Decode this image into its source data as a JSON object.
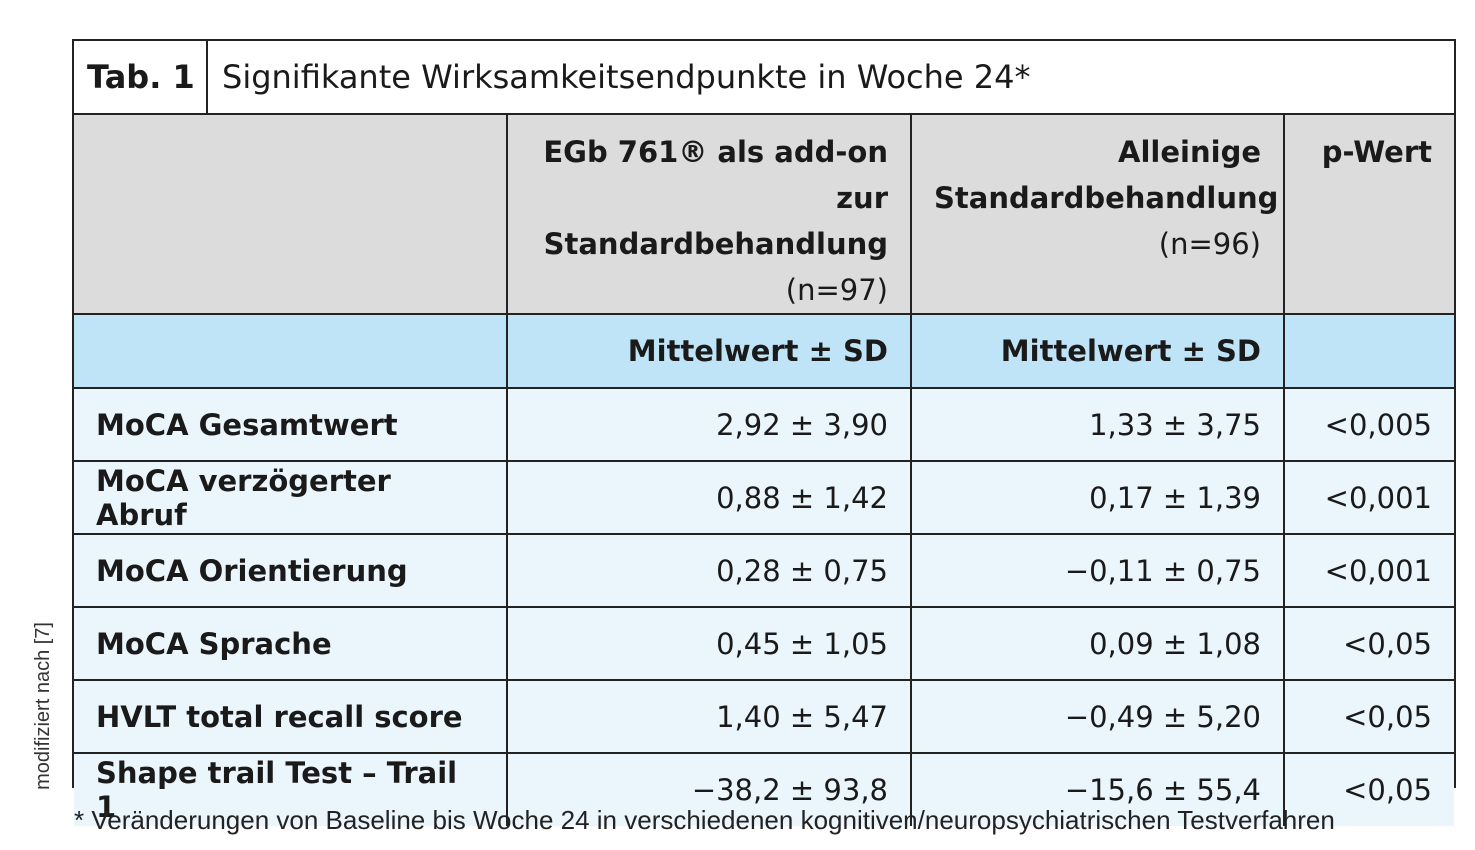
{
  "side_note": "modifiziert nach [7]",
  "title": {
    "tab_label": "Tab. 1",
    "text": "Signifikante Wirksamkeitsendpunkte in Woche 24*"
  },
  "header": {
    "col1": "",
    "col2_line1": "EGb 761® als add-on zur",
    "col2_line2": "Standardbehandlung",
    "col2_n": "(n=97)",
    "col3_line1": "Alleinige",
    "col3_line2": "Standardbehandlung",
    "col3_n": "(n=96)",
    "col4": "p-Wert"
  },
  "subheader": {
    "col1": "",
    "col2": "Mittelwert ± SD",
    "col3": "Mittelwert ± SD",
    "col4": ""
  },
  "rows": [
    {
      "label": "MoCA Gesamtwert",
      "egb": "2,92 ± 3,90",
      "standard": "1,33 ± 3,75",
      "p": "<0,005"
    },
    {
      "label": "MoCA verzögerter Abruf",
      "egb": "0,88 ± 1,42",
      "standard": "0,17 ± 1,39",
      "p": "<0,001"
    },
    {
      "label": "MoCA Orientierung",
      "egb": "0,28 ± 0,75",
      "standard": "−0,11 ± 0,75",
      "p": "<0,001"
    },
    {
      "label": "MoCA Sprache",
      "egb": "0,45 ± 1,05",
      "standard": "0,09 ± 1,08",
      "p": "<0,05"
    },
    {
      "label": "HVLT total recall score",
      "egb": "1,40 ± 5,47",
      "standard": "−0,49 ± 5,20",
      "p": "<0,05"
    },
    {
      "label": "Shape trail Test – Trail 1",
      "egb": "−38,2 ± 93,8",
      "standard": "−15,6 ± 55,4",
      "p": "<0,05"
    }
  ],
  "footnote": "* Veränderungen von Baseline bis Woche 24 in verschiedenen kognitiven/neuropsychiatrischen Testverfahren",
  "colors": {
    "header_bg": "#dcdcdc",
    "subheader_bg": "#bfe3f7",
    "row_bg": "#eaf5fc",
    "border": "#222222"
  }
}
